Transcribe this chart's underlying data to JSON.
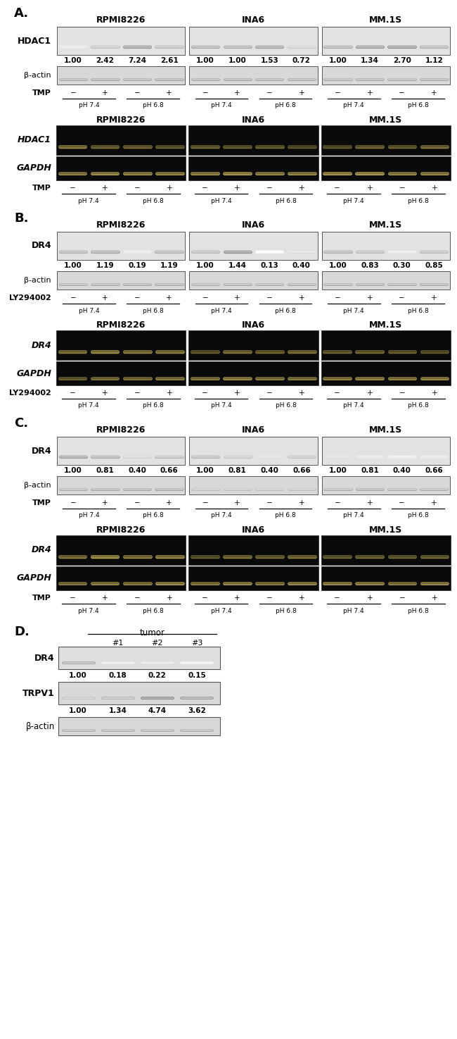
{
  "panel_A": {
    "label": "A.",
    "cell_lines": [
      "RPMI8226",
      "INA6",
      "MM.1S"
    ],
    "wb_protein": "HDAC1",
    "wb_loading": "β-actin",
    "wb_values": [
      [
        "1.00",
        "2.42",
        "7.24",
        "2.61"
      ],
      [
        "1.00",
        "1.00",
        "1.53",
        "0.72"
      ],
      [
        "1.00",
        "1.34",
        "2.70",
        "1.12"
      ]
    ],
    "treatment": "TMP",
    "pcr_gene": "HDAC1",
    "pcr_ref": "GAPDH",
    "ph_labels": [
      "pH 7.4",
      "pH 6.8"
    ]
  },
  "panel_B": {
    "label": "B.",
    "cell_lines": [
      "RPMI8226",
      "INA6",
      "MM.1S"
    ],
    "wb_protein": "DR4",
    "wb_loading": "β-actin",
    "wb_values": [
      [
        "1.00",
        "1.19",
        "0.19",
        "1.19"
      ],
      [
        "1.00",
        "1.44",
        "0.13",
        "0.40"
      ],
      [
        "1.00",
        "0.83",
        "0.30",
        "0.85"
      ]
    ],
    "treatment": "LY294002",
    "pcr_gene": "DR4",
    "pcr_ref": "GAPDH",
    "ph_labels": [
      "pH 7.4",
      "pH 6.8"
    ]
  },
  "panel_C": {
    "label": "C.",
    "cell_lines": [
      "RPMI8226",
      "INA6",
      "MM.1S"
    ],
    "wb_protein": "DR4",
    "wb_loading": "β-actin",
    "wb_values": [
      [
        "1.00",
        "0.81",
        "0.40",
        "0.66"
      ],
      [
        "1.00",
        "0.81",
        "0.40",
        "0.66"
      ],
      [
        "1.00",
        "0.81",
        "0.40",
        "0.66"
      ]
    ],
    "treatment": "TMP",
    "pcr_gene": "DR4",
    "pcr_ref": "GAPDH",
    "ph_labels": [
      "pH 7.4",
      "pH 6.8"
    ]
  },
  "panel_D": {
    "label": "D.",
    "title": "tumor",
    "samples": [
      "#1",
      "#2",
      "#3"
    ],
    "wb_protein": "DR4",
    "wb_values_D": [
      "1.00",
      "0.18",
      "0.22",
      "0.15"
    ],
    "wb_protein2": "TRPV1",
    "wb_values_D2": [
      "1.00",
      "1.34",
      "4.74",
      "3.62"
    ],
    "wb_loading": "β-actin"
  },
  "bg_white": "#ffffff",
  "text_color": "#000000",
  "font_size_label": 13,
  "font_size_cell": 9,
  "font_size_value": 7.5,
  "font_size_gene": 9,
  "font_size_treat": 8
}
